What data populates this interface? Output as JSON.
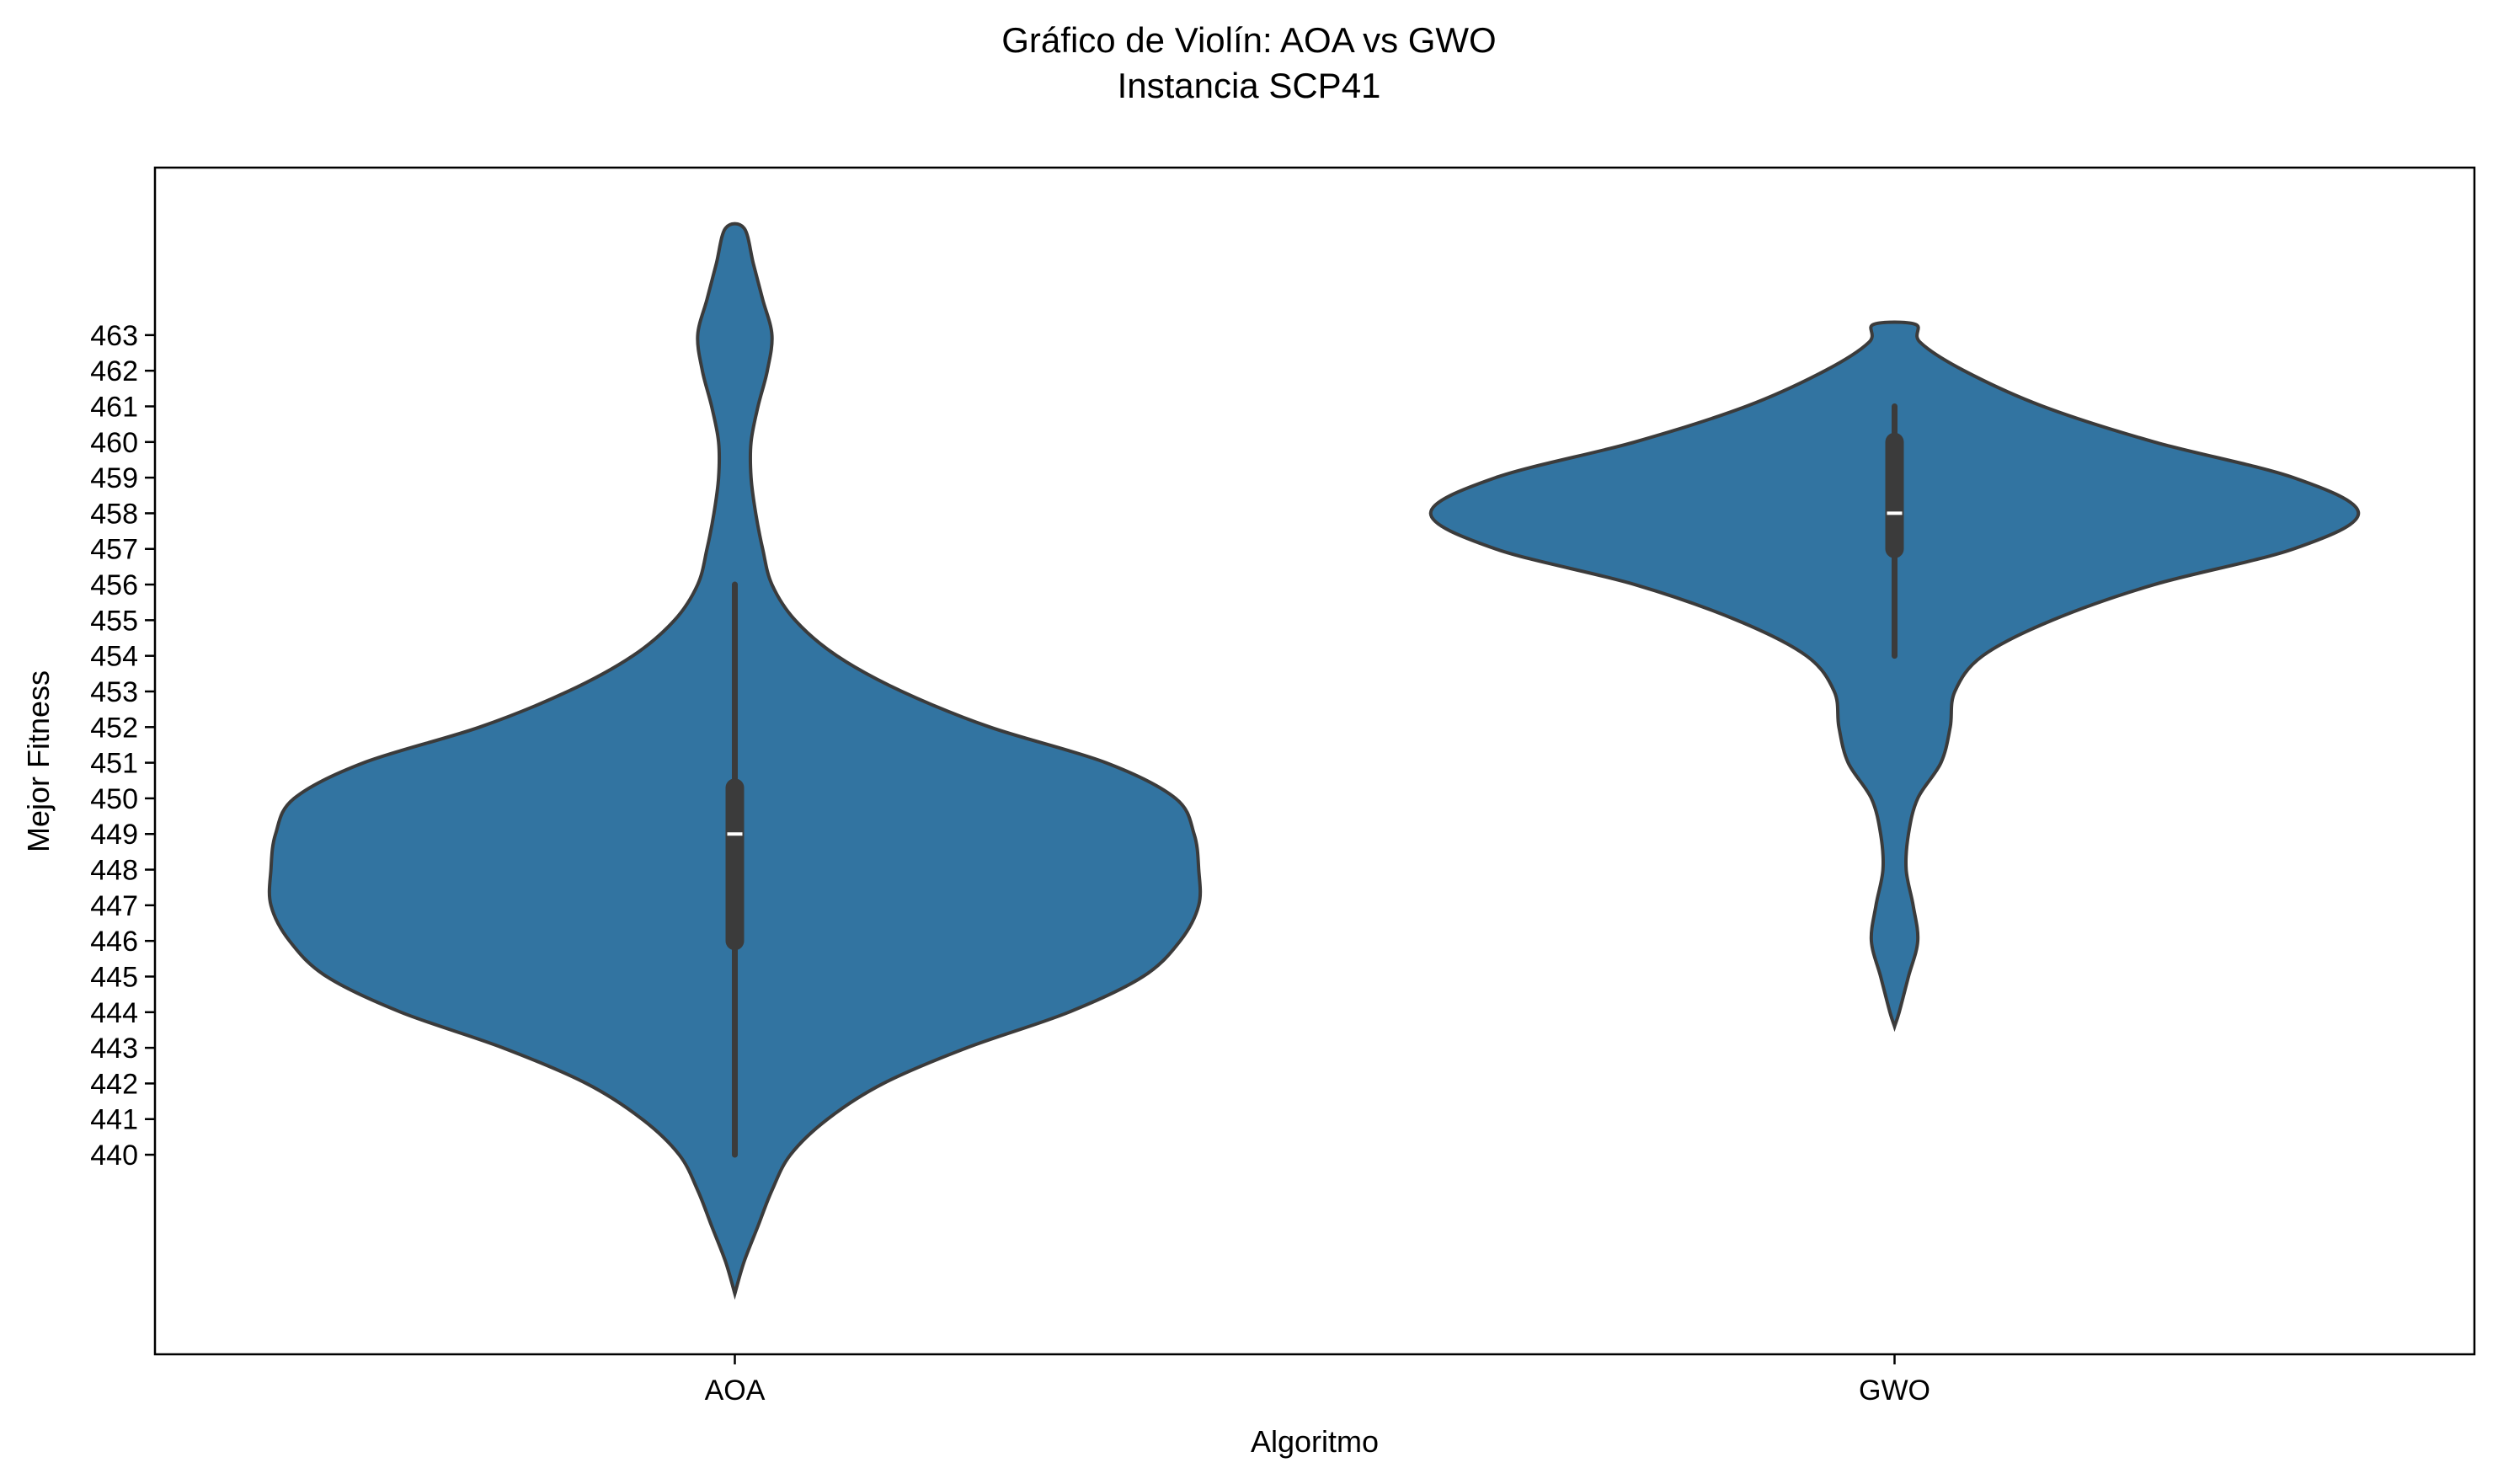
{
  "chart_data": {
    "type": "violin",
    "title": "Gráfico de Violín: AOA vs GWO",
    "subtitle": "Instancia SCP41",
    "xlabel": "Algoritmo",
    "ylabel": "Mejor Fitness",
    "ylim": [
      434.4,
      467.7
    ],
    "yticks": [
      440,
      441,
      442,
      443,
      444,
      445,
      446,
      447,
      448,
      449,
      450,
      451,
      452,
      453,
      454,
      455,
      456,
      457,
      458,
      459,
      460,
      461,
      462,
      463
    ],
    "categories": [
      "AOA",
      "GWO"
    ],
    "fill_color": "#3274a1",
    "edge_color": "#3b3b3b",
    "grid": false,
    "violins": [
      {
        "category": "AOA",
        "min": 440,
        "q1": 446,
        "median": 449,
        "q3": 450.3,
        "max": 456,
        "density": [
          [
            436.1,
            0.0
          ],
          [
            437,
            0.02
          ],
          [
            438,
            0.05
          ],
          [
            439,
            0.08
          ],
          [
            440,
            0.12
          ],
          [
            441,
            0.2
          ],
          [
            442,
            0.32
          ],
          [
            443,
            0.5
          ],
          [
            444,
            0.72
          ],
          [
            445,
            0.88
          ],
          [
            446,
            0.96
          ],
          [
            447,
            1.0
          ],
          [
            448,
            1.0
          ],
          [
            449,
            0.99
          ],
          [
            450,
            0.95
          ],
          [
            451,
            0.8
          ],
          [
            452,
            0.55
          ],
          [
            453,
            0.36
          ],
          [
            454,
            0.22
          ],
          [
            455,
            0.13
          ],
          [
            456,
            0.08
          ],
          [
            457,
            0.06
          ],
          [
            458,
            0.045
          ],
          [
            459,
            0.035
          ],
          [
            460,
            0.035
          ],
          [
            461,
            0.05
          ],
          [
            462,
            0.07
          ],
          [
            463,
            0.08
          ],
          [
            464,
            0.06
          ],
          [
            465,
            0.04
          ],
          [
            466.0,
            0.02
          ]
        ]
      },
      {
        "category": "GWO",
        "min": 454,
        "q1": 457,
        "median": 458,
        "q3": 460,
        "max": 461,
        "density": [
          [
            443.6,
            0.0
          ],
          [
            444,
            0.01
          ],
          [
            445,
            0.03
          ],
          [
            446,
            0.05
          ],
          [
            447,
            0.04
          ],
          [
            448,
            0.025
          ],
          [
            449,
            0.03
          ],
          [
            450,
            0.05
          ],
          [
            451,
            0.1
          ],
          [
            452,
            0.12
          ],
          [
            453,
            0.13
          ],
          [
            454,
            0.19
          ],
          [
            455,
            0.34
          ],
          [
            456,
            0.56
          ],
          [
            457,
            0.86
          ],
          [
            458,
            1.0
          ],
          [
            459,
            0.86
          ],
          [
            460,
            0.56
          ],
          [
            461,
            0.32
          ],
          [
            462,
            0.15
          ],
          [
            462.8,
            0.055
          ],
          [
            463.3,
            0.045
          ]
        ]
      }
    ]
  }
}
